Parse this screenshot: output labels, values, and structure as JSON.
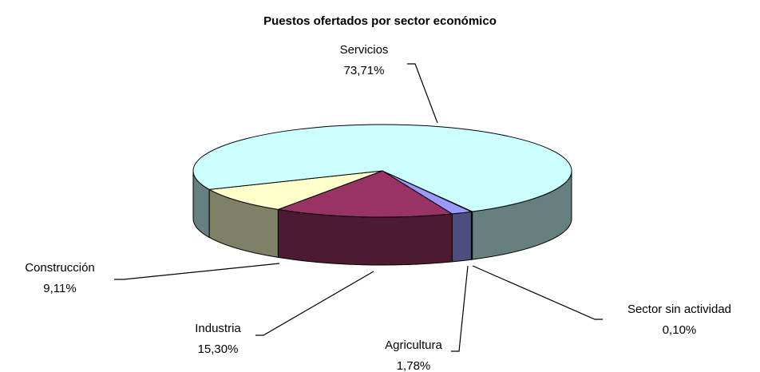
{
  "chart_data": {
    "type": "pie",
    "title": "Puestos ofertados por sector económico",
    "categories": [
      "Sector sin actividad",
      "Agricultura",
      "Industria",
      "Construcción",
      "Servicios"
    ],
    "values": [
      0.1,
      1.78,
      15.3,
      9.11,
      73.71
    ],
    "value_labels": [
      "0,10%",
      "1,78%",
      "15,30%",
      "9,11%",
      "73,71%"
    ],
    "colors": [
      "#cc99ff",
      "#9999ff",
      "#993366",
      "#ffffcc",
      "#ccffff"
    ]
  }
}
